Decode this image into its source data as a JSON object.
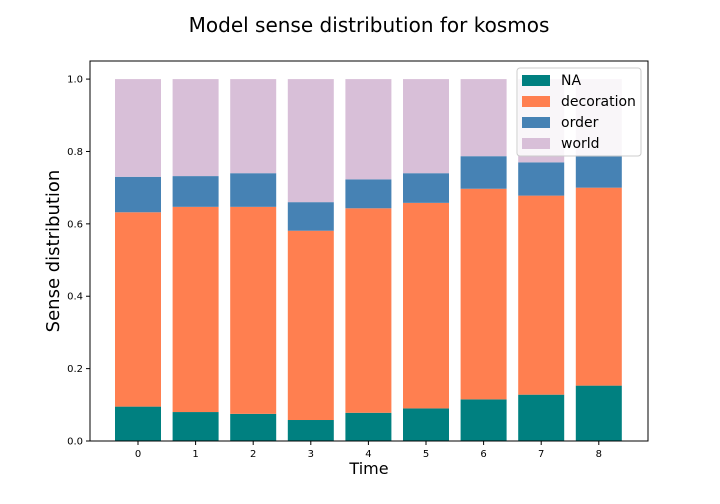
{
  "chart_data": {
    "type": "bar",
    "stacked": true,
    "title": "Model sense distribution for kosmos",
    "xlabel": "Time",
    "ylabel": "Sense distribution",
    "categories": [
      "0",
      "1",
      "2",
      "3",
      "4",
      "5",
      "6",
      "7",
      "8"
    ],
    "ylim": [
      0,
      1.05
    ],
    "yticks": [
      "0.0",
      "0.2",
      "0.4",
      "0.6",
      "0.8",
      "1.0"
    ],
    "grid": false,
    "legend_position": "top-right",
    "series": [
      {
        "name": "NA",
        "color": "#008080",
        "values": [
          0.095,
          0.08,
          0.075,
          0.058,
          0.078,
          0.09,
          0.115,
          0.128,
          0.153
        ]
      },
      {
        "name": "decoration",
        "color": "#ff7f50",
        "values": [
          0.537,
          0.567,
          0.572,
          0.523,
          0.565,
          0.568,
          0.582,
          0.55,
          0.547
        ]
      },
      {
        "name": "order",
        "color": "#4682b4",
        "values": [
          0.098,
          0.085,
          0.093,
          0.079,
          0.08,
          0.082,
          0.09,
          0.092,
          0.09
        ]
      },
      {
        "name": "world",
        "color": "#d8bfd8",
        "values": [
          0.27,
          0.268,
          0.26,
          0.34,
          0.277,
          0.26,
          0.213,
          0.23,
          0.21
        ]
      }
    ]
  }
}
